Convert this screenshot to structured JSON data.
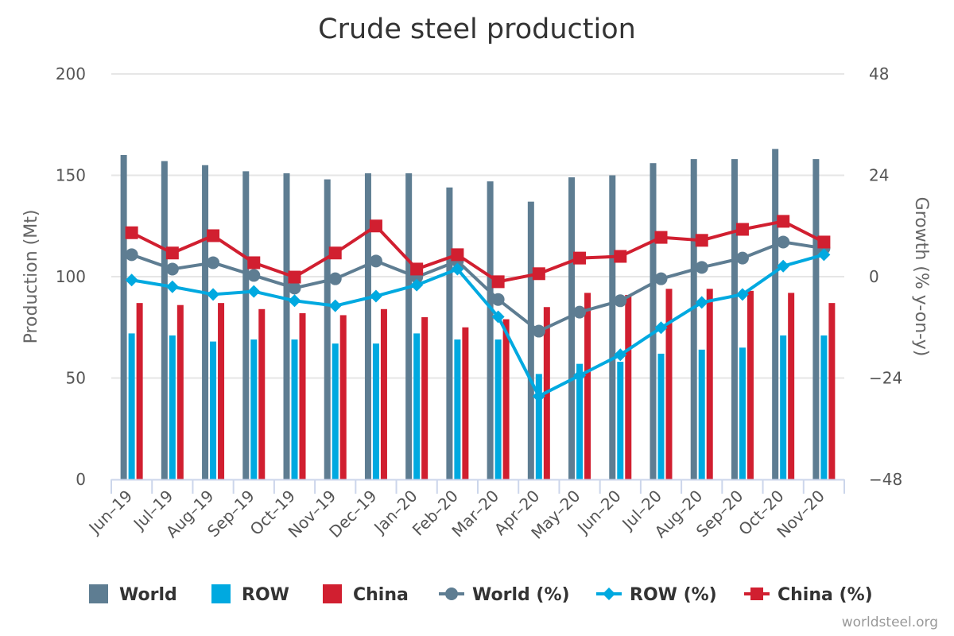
{
  "chart_data": {
    "type": "bar+line",
    "title": "Crude steel production",
    "xlabel": "",
    "ylabel": "Production (Mt)",
    "y2label": "Growth (% y-on-y)",
    "ylim": [
      0,
      200
    ],
    "y2lim": [
      -48,
      48
    ],
    "yticks": [
      0,
      50,
      100,
      150,
      200
    ],
    "y2ticks": [
      -48,
      -24,
      0,
      24,
      48
    ],
    "grid": true,
    "legend_position": "bottom",
    "categories": [
      "Jun-19",
      "Jul-19",
      "Aug-19",
      "Sep-19",
      "Oct-19",
      "Nov-19",
      "Dec-19",
      "Jan-20",
      "Feb-20",
      "Mar-20",
      "Apr-20",
      "May-20",
      "Jun-20",
      "Jul-20",
      "Aug-20",
      "Sep-20",
      "Oct-20",
      "Nov-20"
    ],
    "series": [
      {
        "name": "World",
        "type": "bar",
        "axis": "left",
        "color": "#5e7d92",
        "values": [
          160,
          157,
          155,
          152,
          151,
          148,
          151,
          151,
          144,
          147,
          137,
          149,
          150,
          156,
          158,
          158,
          163,
          158
        ]
      },
      {
        "name": "ROW",
        "type": "bar",
        "axis": "left",
        "color": "#00a9e0",
        "values": [
          72,
          71,
          68,
          69,
          69,
          67,
          67,
          72,
          69,
          69,
          52,
          57,
          58,
          62,
          64,
          65,
          71,
          71
        ]
      },
      {
        "name": "China",
        "type": "bar",
        "axis": "left",
        "color": "#d11f30",
        "values": [
          87,
          86,
          87,
          84,
          82,
          81,
          84,
          80,
          75,
          79,
          85,
          92,
          91,
          94,
          94,
          93,
          92,
          87
        ]
      },
      {
        "name": "World (%)",
        "type": "line",
        "marker": "circle",
        "axis": "right",
        "color": "#5e7d92",
        "values": [
          5.2,
          1.8,
          3.3,
          0.3,
          -2.7,
          -0.5,
          3.7,
          -0.1,
          3.7,
          -5.4,
          -12.9,
          -8.4,
          -5.7,
          -0.5,
          2.2,
          4.4,
          8.2,
          6.7
        ]
      },
      {
        "name": "ROW (%)",
        "type": "line",
        "marker": "diamond",
        "axis": "right",
        "color": "#00a9e0",
        "values": [
          -0.8,
          -2.4,
          -4.2,
          -3.5,
          -5.7,
          -6.9,
          -4.6,
          -2.0,
          1.8,
          -9.5,
          -28.3,
          -23.4,
          -18.5,
          -12.1,
          -6.1,
          -4.2,
          2.5,
          5.2
        ]
      },
      {
        "name": "China (%)",
        "type": "line",
        "marker": "square",
        "axis": "right",
        "color": "#d11f30",
        "values": [
          10.4,
          5.6,
          9.7,
          3.3,
          -0.1,
          5.6,
          12.0,
          1.8,
          5.2,
          -1.2,
          0.7,
          4.4,
          4.8,
          9.3,
          8.6,
          11.2,
          13.1,
          8.2
        ]
      }
    ],
    "credit": "worldsteel.org"
  }
}
